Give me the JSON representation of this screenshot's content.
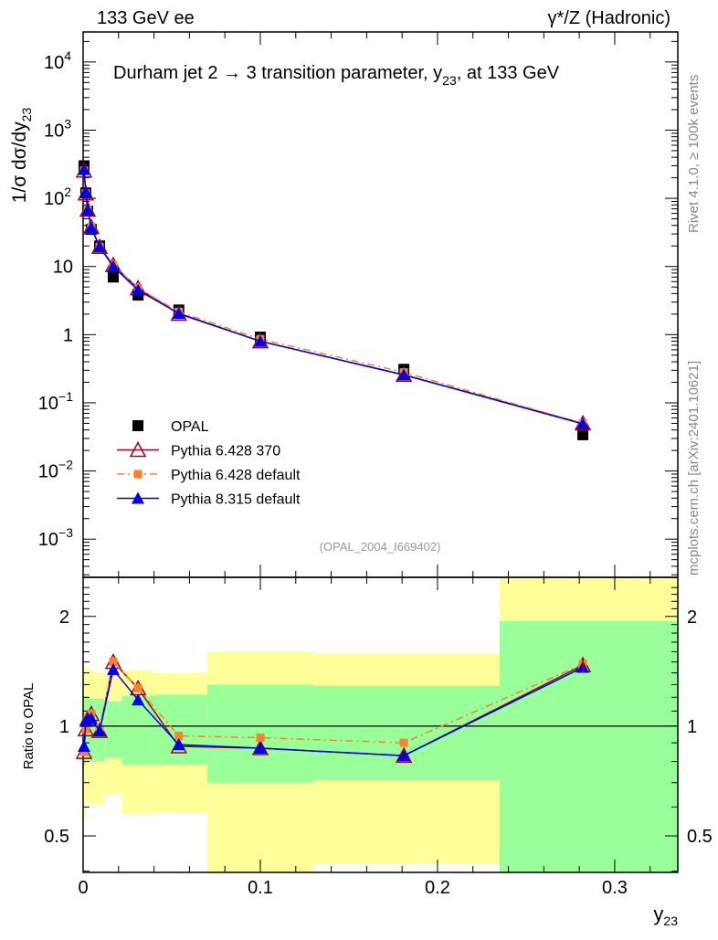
{
  "header": {
    "left": "133 GeV ee",
    "right": "γ*/Z (Hadronic)",
    "side_top": "Rivet 4.1.0, ≥ 100k events",
    "side_bottom": "mcplots.cern.ch [arXiv:2401.10621]"
  },
  "chart_data": {
    "type": "line",
    "title": "Durham jet 2 → 3 transition parameter, y23, at 133 GeV",
    "title_parts": {
      "pre": "Durham jet 2 →  3 transition parameter, y",
      "sub": "23",
      "post": ", at 133 GeV"
    },
    "analysis_id": "(OPAL_2004_I669402)",
    "xlabel": {
      "base": "y",
      "sub": "23"
    },
    "ylabel": {
      "pre": "1/σ  dσ/dy",
      "sub": "23"
    },
    "ratio_ylabel": "Ratio to OPAL",
    "xlim": [
      0,
      0.3356
    ],
    "ylim_log10": [
      -3.56,
      4.44
    ],
    "ratio_ylim": [
      0.397,
      2.56
    ],
    "x_ticks": [
      {
        "v": 0,
        "label": "0"
      },
      {
        "v": 0.1,
        "label": "0.1"
      },
      {
        "v": 0.2,
        "label": "0.2"
      },
      {
        "v": 0.3,
        "label": "0.3"
      }
    ],
    "y_ticks": [
      {
        "v": 10000,
        "base": "10",
        "exp": "4"
      },
      {
        "v": 1000,
        "base": "10",
        "exp": "3"
      },
      {
        "v": 100,
        "base": "10",
        "exp": "2"
      },
      {
        "v": 10,
        "base": "10",
        "exp": ""
      },
      {
        "v": 1,
        "base": "1",
        "exp": ""
      },
      {
        "v": 0.1,
        "base": "10",
        "exp": "−1"
      },
      {
        "v": 0.01,
        "base": "10",
        "exp": "−2"
      },
      {
        "v": 0.001,
        "base": "10",
        "exp": "−3"
      }
    ],
    "ratio_ticks": [
      {
        "v": 2,
        "label": "2"
      },
      {
        "v": 1,
        "label": "1"
      },
      {
        "v": 0.5,
        "label": "0.5"
      }
    ],
    "x": [
      0.0005,
      0.0015,
      0.0026,
      0.0046,
      0.0093,
      0.017,
      0.031,
      0.054,
      0.1,
      0.181,
      0.282
    ],
    "bin_edges": [
      0,
      0.001,
      0.002,
      0.003,
      0.006,
      0.012,
      0.022,
      0.04,
      0.07,
      0.13,
      0.235,
      0.3356
    ],
    "bands": {
      "yellow": [
        [
          0.56,
          1.45
        ],
        [
          0.62,
          1.45
        ],
        [
          0.62,
          1.45
        ],
        [
          0.61,
          1.42
        ],
        [
          0.61,
          1.4
        ],
        [
          0.65,
          1.39
        ],
        [
          0.575,
          1.42
        ],
        [
          0.58,
          1.4
        ],
        [
          0.35,
          1.6
        ],
        [
          0.42,
          1.58
        ],
        [
          0.3,
          3.0
        ]
      ],
      "green": [
        [
          0.78,
          1.2
        ],
        [
          0.8,
          1.2
        ],
        [
          0.8,
          1.2
        ],
        [
          0.8,
          1.19
        ],
        [
          0.8,
          1.19
        ],
        [
          0.82,
          1.17
        ],
        [
          0.785,
          1.21
        ],
        [
          0.785,
          1.22
        ],
        [
          0.7,
          1.3
        ],
        [
          0.71,
          1.29
        ],
        [
          0.35,
          1.94
        ]
      ]
    },
    "series": [
      {
        "name": "OPAL",
        "color": "#000000",
        "marker": "square",
        "values": [
          300,
          120,
          65,
          35,
          20,
          7.0,
          3.8,
          2.3,
          0.92,
          0.31,
          0.034
        ]
      },
      {
        "name": "Pythia 6.428 370",
        "color": "#a50021",
        "marker": "open-triangle",
        "dash": "",
        "values": [
          255,
          118,
          68,
          38,
          19.4,
          10.5,
          4.8,
          2.02,
          0.8,
          0.257,
          0.05
        ],
        "ratio": [
          0.85,
          0.98,
          1.05,
          1.08,
          0.97,
          1.5,
          1.27,
          0.88,
          0.87,
          0.83,
          1.47
        ]
      },
      {
        "name": "Pythia 6.428 default",
        "color": "#ff7f2a",
        "marker": "square-small",
        "dash": "8,4,2,4",
        "values": [
          255,
          118,
          68,
          38,
          19.4,
          10.5,
          4.8,
          2.16,
          0.86,
          0.28,
          0.05
        ],
        "ratio": [
          0.85,
          0.98,
          1.05,
          1.08,
          0.97,
          1.5,
          1.27,
          0.94,
          0.93,
          0.9,
          1.48
        ]
      },
      {
        "name": "Pythia 8.315 default",
        "color": "#0000e6",
        "marker": "triangle",
        "dash": "",
        "values": [
          264,
          124,
          68,
          37,
          19.4,
          10.0,
          4.5,
          2.05,
          0.8,
          0.257,
          0.049
        ],
        "ratio": [
          0.88,
          1.03,
          1.05,
          1.05,
          0.97,
          1.43,
          1.18,
          0.89,
          0.87,
          0.83,
          1.45
        ]
      }
    ],
    "legend_placement": "bottom-left",
    "grid": false
  }
}
